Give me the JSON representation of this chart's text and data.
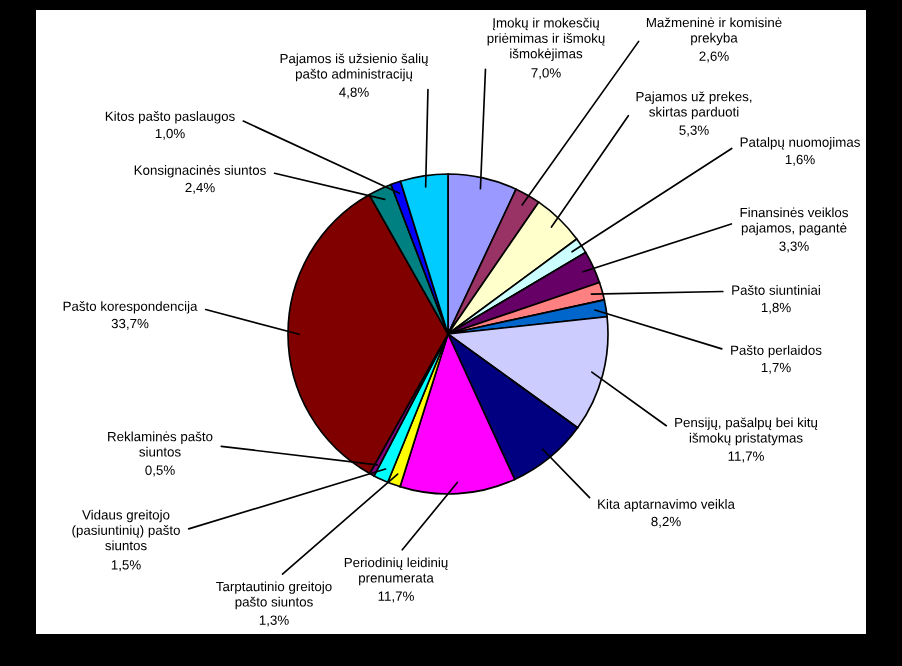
{
  "chart_data": {
    "type": "pie",
    "categories": [
      "Įmokų ir mokesčių\npriėmimas ir išmokų\nišmokėjimas",
      "Mažmeninė ir komisinė\nprekyba",
      "Pajamos už prekes,\nskirtas parduoti",
      "Patalpų nuomojimas",
      "Finansinės veiklos\npajamos, pagantė",
      "Pašto siuntiniai",
      "Pašto perlaidos",
      "Pensijų, pašalpų bei kitų\nišmokų pristatymas",
      "Kita aptarnavimo veikla",
      "Periodinių leidinių\nprenumerata",
      "Tarptautinio greitojo\npašto siuntos",
      "Vidaus greitojo\n(pasiuntinių) pašto\nsiuntos",
      "Reklaminės pašto\nsiuntos",
      "Pašto korespondencija",
      "Konsignacinės siuntos",
      "Kitos pašto paslaugos",
      "Pajamos iš užsienio šalių\npašto administracijų"
    ],
    "values": [
      7.0,
      2.6,
      5.3,
      1.6,
      3.3,
      1.8,
      1.7,
      11.7,
      8.2,
      11.7,
      1.3,
      1.5,
      0.5,
      33.7,
      2.4,
      1.0,
      4.8
    ],
    "value_labels": [
      "7,0%",
      "2,6%",
      "5,3%",
      "1,6%",
      "3,3%",
      "1,8%",
      "1,7%",
      "11,7%",
      "8,2%",
      "11,7%",
      "1,3%",
      "1,5%",
      "0,5%",
      "33,7%",
      "2,4%",
      "1,0%",
      "4,8%"
    ],
    "colors": [
      "#9999ff",
      "#993366",
      "#ffffcc",
      "#ccffff",
      "#660066",
      "#ff8080",
      "#0066cc",
      "#ccccff",
      "#000080",
      "#ff00ff",
      "#ffff00",
      "#00ffff",
      "#800080",
      "#800000",
      "#008080",
      "#0000ff",
      "#00ccff"
    ],
    "legend": false
  }
}
